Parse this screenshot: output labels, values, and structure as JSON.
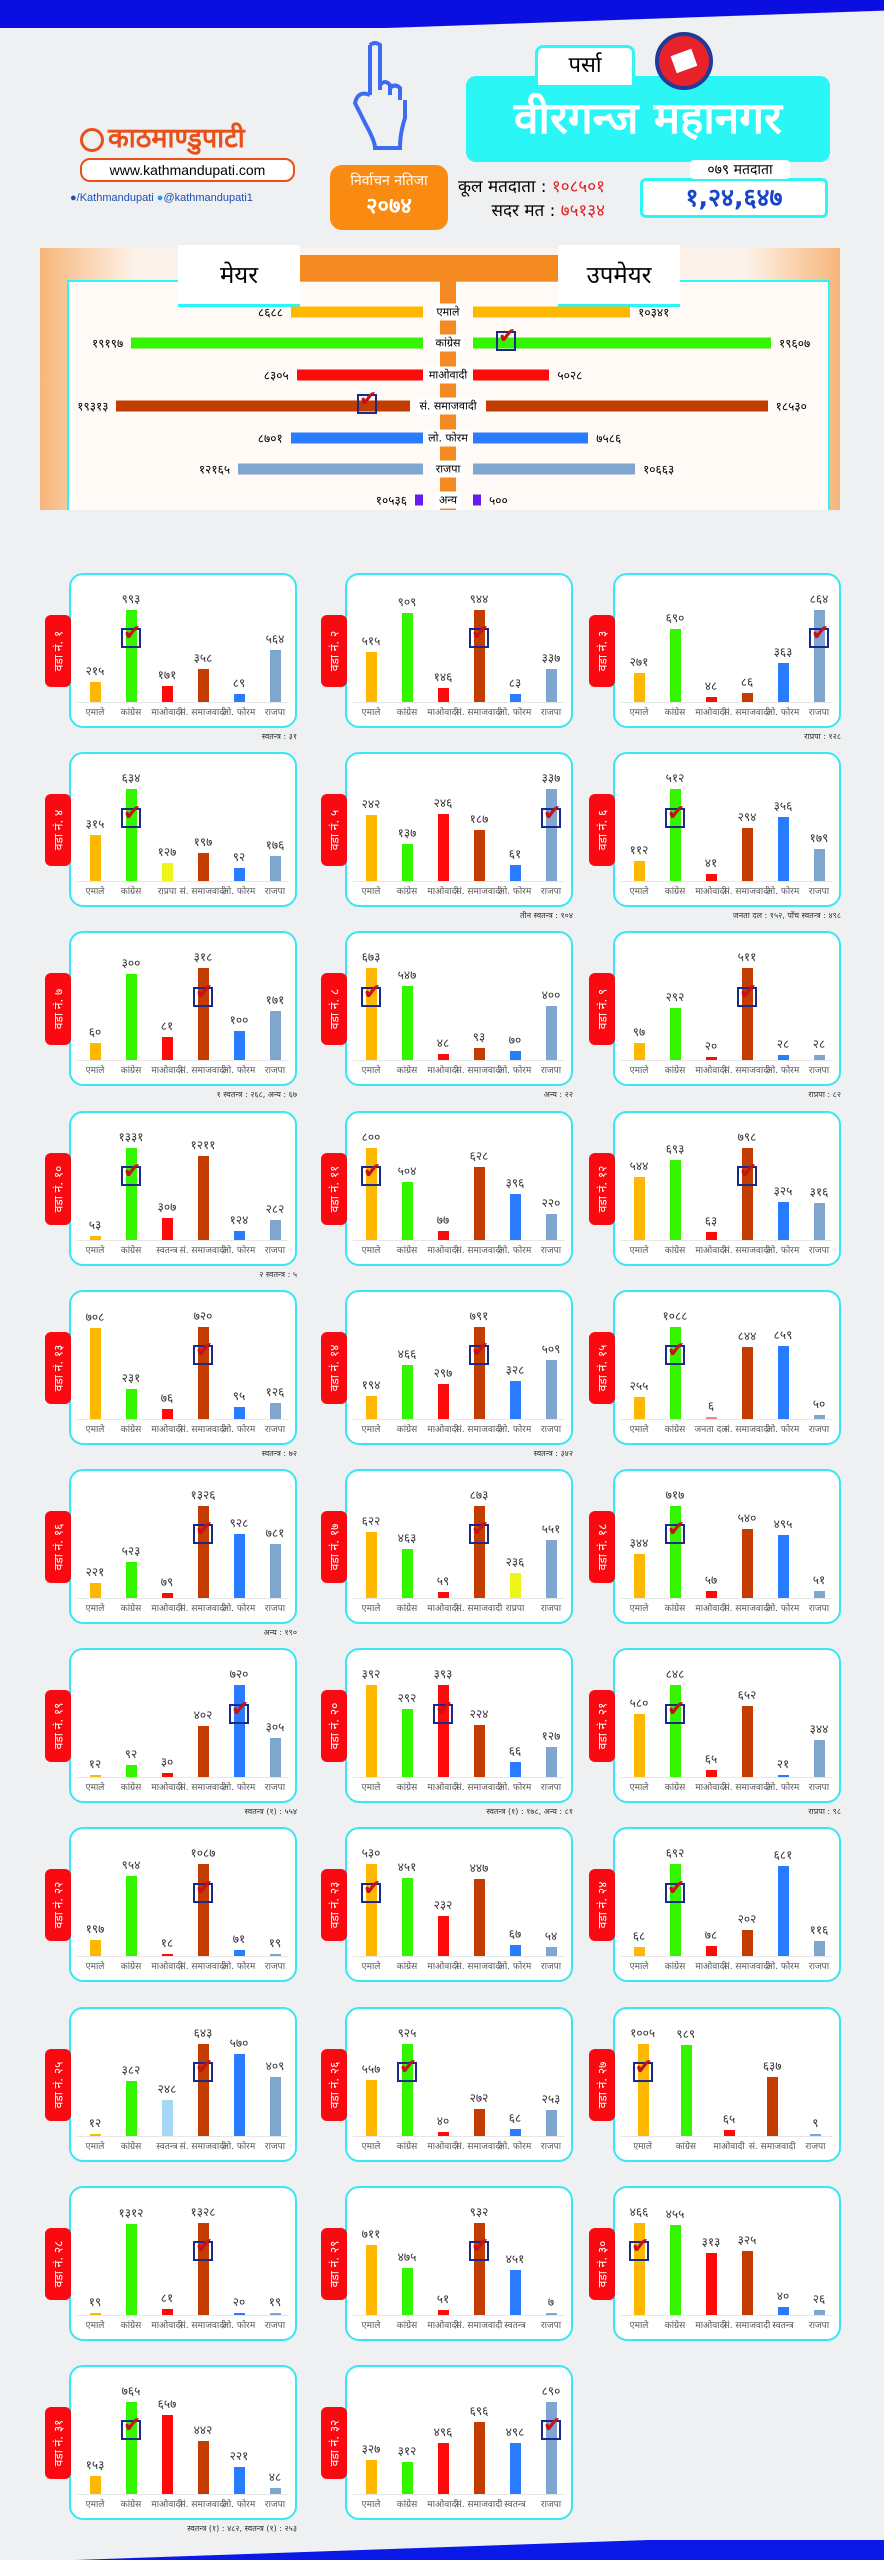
{
  "header": {
    "logo": "काठमाण्डुपाटी",
    "site": "www.kathmandupati.com",
    "facebook": "/Kathmandupati",
    "twitter": "@kathmandupati1",
    "badge_line1": "निर्वाचन नतिजा",
    "badge_line2": "२०७४",
    "district": "पर्सा",
    "city": "वीरगन्ज महानगर",
    "total_voters_label": "कूल मतदाता :",
    "total_voters": "१०८५०१",
    "valid_votes_label": "सदर मत :",
    "valid_votes": "७५१३४",
    "voters079_label": "०७९ मतदाता",
    "voters079": "१,२४,६४७"
  },
  "summary": {
    "mayor_title": "मेयर",
    "deputy_title": "उपमेयर",
    "rows": [
      {
        "party": "एमाले",
        "color": "uml",
        "mayor": "८६८८",
        "deputy": "१०३४१"
      },
      {
        "party": "कांग्रेस",
        "color": "nc",
        "mayor": "१९१९७",
        "deputy": "१९६०७",
        "deputy_win": true
      },
      {
        "party": "माओवादी",
        "color": "mc",
        "mayor": "८३०५",
        "deputy": "५०२८"
      },
      {
        "party": "सं. समाजवादी",
        "color": "ss",
        "mayor": "१९३१३",
        "deputy": "१८५३०",
        "mayor_win": true
      },
      {
        "party": "लो. फोरम",
        "color": "lf",
        "mayor": "८७०१",
        "deputy": "७५८६"
      },
      {
        "party": "राजपा",
        "color": "rjp",
        "mayor": "१२१६५",
        "deputy": "१०६६३"
      },
      {
        "party": "अन्य",
        "color": "other",
        "mayor": "१०५३६",
        "deputy": "५००",
        "small": true
      }
    ]
  },
  "colors": {
    "uml": "#ffb800",
    "nc": "#33f500",
    "mc": "#ff0a0a",
    "ss": "#c43d00",
    "lf": "#2a7cff",
    "rjp": "#7fa6cf",
    "rpp": "#eef51a",
    "indr": "#ff0a0a",
    "indlb": "#a6d8f5",
    "indb": "#2a7cff",
    "jd": "#ff8080",
    "other": "#6a1cf0"
  },
  "parties": {
    "uml": "एमाले",
    "nc": "कांग्रेस",
    "mc": "माओवादी",
    "ss": "सं. समाजवादी",
    "lf": "लो. फोरम",
    "rjp": "राजपा",
    "rpp": "राप्रपा",
    "indr": "स्वतन्त्र",
    "indlb": "स्वतन्त्र",
    "indb": "स्वतन्त्र",
    "jd": "जनता दल"
  },
  "ward_prefix": "वडा नं.",
  "wards": [
    {
      "no": "१",
      "bars": [
        [
          "uml",
          "२१५"
        ],
        [
          "nc",
          "९९३"
        ],
        [
          "mc",
          "१७१"
        ],
        [
          "ss",
          "३५८"
        ],
        [
          "lf",
          "८९"
        ],
        [
          "rjp",
          "५६४"
        ]
      ],
      "win": 1,
      "note": "स्वतन्त्र : ३१"
    },
    {
      "no": "२",
      "bars": [
        [
          "uml",
          "५१५"
        ],
        [
          "nc",
          "९०९"
        ],
        [
          "mc",
          "१४६"
        ],
        [
          "ss",
          "९४४"
        ],
        [
          "lf",
          "८३"
        ],
        [
          "rjp",
          "३३७"
        ]
      ],
      "win": 3
    },
    {
      "no": "३",
      "bars": [
        [
          "uml",
          "२७१"
        ],
        [
          "nc",
          "६९०"
        ],
        [
          "mc",
          "४८"
        ],
        [
          "ss",
          "८६"
        ],
        [
          "lf",
          "३६३"
        ],
        [
          "rjp",
          "८६४"
        ]
      ],
      "win": 5,
      "note": "राप्रपा : १२८"
    },
    {
      "no": "४",
      "bars": [
        [
          "uml",
          "३१५"
        ],
        [
          "nc",
          "६३४"
        ],
        [
          "rpp",
          "१२७"
        ],
        [
          "ss",
          "१९७"
        ],
        [
          "lf",
          "९२"
        ],
        [
          "rjp",
          "१७६"
        ]
      ],
      "win": 1
    },
    {
      "no": "५",
      "bars": [
        [
          "uml",
          "२४२"
        ],
        [
          "nc",
          "१३७"
        ],
        [
          "mc",
          "२४६"
        ],
        [
          "ss",
          "१८७"
        ],
        [
          "lf",
          "६१"
        ],
        [
          "rjp",
          "३३७"
        ]
      ],
      "win": 5,
      "note": "तीन स्वतन्त्र : १०४"
    },
    {
      "no": "६",
      "bars": [
        [
          "uml",
          "११२"
        ],
        [
          "nc",
          "५१२"
        ],
        [
          "mc",
          "४१"
        ],
        [
          "ss",
          "२९४"
        ],
        [
          "lf",
          "३५६"
        ],
        [
          "rjp",
          "१७९"
        ]
      ],
      "win": 1,
      "note": "जनता दल : १५२, पाँच स्वतन्त्र : ४९८"
    },
    {
      "no": "७",
      "bars": [
        [
          "uml",
          "६०"
        ],
        [
          "nc",
          "३००"
        ],
        [
          "mc",
          "८१"
        ],
        [
          "ss",
          "३१८"
        ],
        [
          "lf",
          "१००"
        ],
        [
          "rjp",
          "१७१"
        ]
      ],
      "win": 3,
      "note": "१ स्वतन्त्र : २६८, अन्य : ६७"
    },
    {
      "no": "८",
      "bars": [
        [
          "uml",
          "६७३"
        ],
        [
          "nc",
          "५४७"
        ],
        [
          "mc",
          "४८"
        ],
        [
          "ss",
          "९३"
        ],
        [
          "lf",
          "७०"
        ],
        [
          "rjp",
          "४००"
        ]
      ],
      "win": 0,
      "note": "अन्य : २२"
    },
    {
      "no": "९",
      "bars": [
        [
          "uml",
          "९७"
        ],
        [
          "nc",
          "२९२"
        ],
        [
          "mc",
          "२०"
        ],
        [
          "ss",
          "५११"
        ],
        [
          "lf",
          "२८"
        ],
        [
          "rjp",
          "२८"
        ]
      ],
      "win": 3,
      "note": "राप्रपा : ८२"
    },
    {
      "no": "१०",
      "bars": [
        [
          "uml",
          "५३"
        ],
        [
          "nc",
          "१३३१"
        ],
        [
          "indr",
          "३०७"
        ],
        [
          "ss",
          "१२११"
        ],
        [
          "lf",
          "१२४"
        ],
        [
          "rjp",
          "२८२"
        ]
      ],
      "win": 1,
      "note": "२ स्वतन्त्र : ५"
    },
    {
      "no": "११",
      "bars": [
        [
          "uml",
          "८००"
        ],
        [
          "nc",
          "५०४"
        ],
        [
          "mc",
          "७७"
        ],
        [
          "ss",
          "६२८"
        ],
        [
          "lf",
          "३९६"
        ],
        [
          "rjp",
          "२२०"
        ]
      ],
      "win": 0
    },
    {
      "no": "१२",
      "bars": [
        [
          "uml",
          "५४४"
        ],
        [
          "nc",
          "६९३"
        ],
        [
          "mc",
          "६३"
        ],
        [
          "ss",
          "७९८"
        ],
        [
          "lf",
          "३२५"
        ],
        [
          "rjp",
          "३१६"
        ]
      ],
      "win": 3
    },
    {
      "no": "१३",
      "bars": [
        [
          "uml",
          "७०८"
        ],
        [
          "nc",
          "२३१"
        ],
        [
          "mc",
          "७६"
        ],
        [
          "ss",
          "७२०"
        ],
        [
          "lf",
          "९५"
        ],
        [
          "rjp",
          "१२६"
        ]
      ],
      "win": 3,
      "note": "स्वतन्त्र : ७२"
    },
    {
      "no": "१४",
      "bars": [
        [
          "uml",
          "१९४"
        ],
        [
          "nc",
          "४६६"
        ],
        [
          "mc",
          "२९७"
        ],
        [
          "ss",
          "७९१"
        ],
        [
          "lf",
          "३२८"
        ],
        [
          "rjp",
          "५०९"
        ]
      ],
      "win": 3,
      "note": "स्वतन्त्र : ३४२"
    },
    {
      "no": "१५",
      "bars": [
        [
          "uml",
          "२५५"
        ],
        [
          "nc",
          "१०८८"
        ],
        [
          "jd",
          "६"
        ],
        [
          "ss",
          "८४४"
        ],
        [
          "lf",
          "८५९"
        ],
        [
          "rjp",
          "५०"
        ]
      ],
      "win": 1
    },
    {
      "no": "१६",
      "bars": [
        [
          "uml",
          "२२१"
        ],
        [
          "nc",
          "५२३"
        ],
        [
          "mc",
          "७९"
        ],
        [
          "ss",
          "१३२६"
        ],
        [
          "lf",
          "९२८"
        ],
        [
          "rjp",
          "७८१"
        ]
      ],
      "win": 3,
      "note": "अन्य : १९०"
    },
    {
      "no": "१७",
      "bars": [
        [
          "uml",
          "६२२"
        ],
        [
          "nc",
          "४६३"
        ],
        [
          "mc",
          "५९"
        ],
        [
          "ss",
          "८७३"
        ],
        [
          "rpp",
          "२३६"
        ],
        [
          "rjp",
          "५५१"
        ]
      ],
      "win": 3
    },
    {
      "no": "१८",
      "bars": [
        [
          "uml",
          "३४४"
        ],
        [
          "nc",
          "७१७"
        ],
        [
          "mc",
          "५७"
        ],
        [
          "ss",
          "५४०"
        ],
        [
          "lf",
          "४९५"
        ],
        [
          "rjp",
          "५१"
        ]
      ],
      "win": 1
    },
    {
      "no": "१९",
      "bars": [
        [
          "uml",
          "१२"
        ],
        [
          "nc",
          "९२"
        ],
        [
          "mc",
          "३०"
        ],
        [
          "ss",
          "४०२"
        ],
        [
          "lf",
          "७२०"
        ],
        [
          "rjp",
          "३०५"
        ]
      ],
      "win": 4,
      "note": "स्वतन्त्र (१) : ५५४"
    },
    {
      "no": "२०",
      "bars": [
        [
          "uml",
          "३९२"
        ],
        [
          "nc",
          "२९२"
        ],
        [
          "mc",
          "३९३"
        ],
        [
          "ss",
          "२२४"
        ],
        [
          "lf",
          "६६"
        ],
        [
          "rjp",
          "१२७"
        ]
      ],
      "win": 2,
      "note": "स्वतन्त्र (१) : १७८, अन्य : ८१"
    },
    {
      "no": "२१",
      "bars": [
        [
          "uml",
          "५८०"
        ],
        [
          "nc",
          "८४८"
        ],
        [
          "mc",
          "६५"
        ],
        [
          "ss",
          "६५२"
        ],
        [
          "lf",
          "२१"
        ],
        [
          "rjp",
          "३४४"
        ]
      ],
      "win": 1,
      "note": "राप्रपा : ९८"
    },
    {
      "no": "२२",
      "bars": [
        [
          "uml",
          "१९७"
        ],
        [
          "nc",
          "९५४"
        ],
        [
          "mc",
          "१८"
        ],
        [
          "ss",
          "१०८७"
        ],
        [
          "lf",
          "७१"
        ],
        [
          "rjp",
          "१९"
        ]
      ],
      "win": 3
    },
    {
      "no": "२३",
      "bars": [
        [
          "uml",
          "५३०"
        ],
        [
          "nc",
          "४५१"
        ],
        [
          "mc",
          "२३२"
        ],
        [
          "ss",
          "४४७"
        ],
        [
          "lf",
          "६७"
        ],
        [
          "rjp",
          "५४"
        ]
      ],
      "win": 0
    },
    {
      "no": "२४",
      "bars": [
        [
          "uml",
          "६८"
        ],
        [
          "nc",
          "६९२"
        ],
        [
          "mc",
          "७८"
        ],
        [
          "ss",
          "२०२"
        ],
        [
          "lf",
          "६८१"
        ],
        [
          "rjp",
          "११६"
        ]
      ],
      "win": 1
    },
    {
      "no": "२५",
      "bars": [
        [
          "uml",
          "१२"
        ],
        [
          "nc",
          "३८२"
        ],
        [
          "indlb",
          "२४८"
        ],
        [
          "ss",
          "६४३"
        ],
        [
          "lf",
          "५७०"
        ],
        [
          "rjp",
          "४०९"
        ]
      ],
      "win": 3
    },
    {
      "no": "२६",
      "bars": [
        [
          "uml",
          "५५७"
        ],
        [
          "nc",
          "९२५"
        ],
        [
          "mc",
          "४०"
        ],
        [
          "ss",
          "२७२"
        ],
        [
          "lf",
          "६८"
        ],
        [
          "rjp",
          "२५३"
        ]
      ],
      "win": 1
    },
    {
      "no": "२७",
      "bars": [
        [
          "uml",
          "१००५"
        ],
        [
          "nc",
          "९८९"
        ],
        [
          "mc",
          "६५"
        ],
        [
          "ss",
          "६३७"
        ],
        [
          "rjp",
          "९"
        ]
      ],
      "win": 0
    },
    {
      "no": "२८",
      "bars": [
        [
          "uml",
          "१९"
        ],
        [
          "nc",
          "१३१२"
        ],
        [
          "mc",
          "८१"
        ],
        [
          "ss",
          "१३२८"
        ],
        [
          "lf",
          "२०"
        ],
        [
          "rjp",
          "१९"
        ]
      ],
      "win": 3
    },
    {
      "no": "२९",
      "bars": [
        [
          "uml",
          "७११"
        ],
        [
          "nc",
          "४७५"
        ],
        [
          "mc",
          "५१"
        ],
        [
          "ss",
          "९३२"
        ],
        [
          "indb",
          "४५१"
        ],
        [
          "rjp",
          "७"
        ]
      ],
      "win": 3
    },
    {
      "no": "३०",
      "bars": [
        [
          "uml",
          "४६६"
        ],
        [
          "nc",
          "४५५"
        ],
        [
          "mc",
          "३१३"
        ],
        [
          "ss",
          "३२५"
        ],
        [
          "indb",
          "४०"
        ],
        [
          "rjp",
          "२६"
        ]
      ],
      "win": 0
    },
    {
      "no": "३१",
      "bars": [
        [
          "uml",
          "१५३"
        ],
        [
          "nc",
          "७६५"
        ],
        [
          "mc",
          "६५७"
        ],
        [
          "ss",
          "४४२"
        ],
        [
          "lf",
          "२२१"
        ],
        [
          "rjp",
          "४८"
        ]
      ],
      "win": 1,
      "note": "स्वतन्त्र (१) : ४८२, स्वतन्त्र (१) : २५३"
    },
    {
      "no": "३२",
      "bars": [
        [
          "uml",
          "३२७"
        ],
        [
          "nc",
          "३१२"
        ],
        [
          "mc",
          "४९६"
        ],
        [
          "ss",
          "६९६"
        ],
        [
          "indb",
          "४९८"
        ],
        [
          "rjp",
          "८९०"
        ]
      ],
      "win": 5
    }
  ]
}
